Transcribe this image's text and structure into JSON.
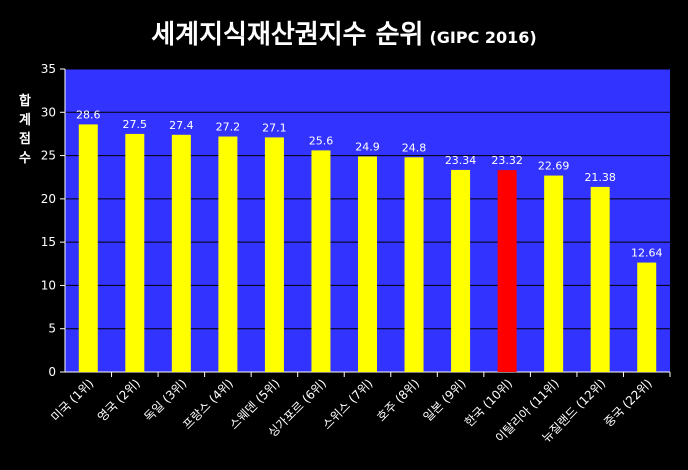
{
  "title": "세계지식재산권지수 순위",
  "subtitle": "(GIPC 2016)",
  "ylabel_chars": [
    "합",
    "계",
    "점",
    "수"
  ],
  "chart_data": {
    "type": "bar",
    "categories": [
      "미국 (1위)",
      "영국 (2위)",
      "독일 (3위)",
      "프랑스 (4위)",
      "스웨덴 (5위)",
      "싱가포르 (6위)",
      "스위스 (7위)",
      "호주 (8위)",
      "일본 (9위)",
      "한국 (10위)",
      "이탈리아 (11위)",
      "뉴질랜드 (12위)",
      "중국 (22위)"
    ],
    "values": [
      28.6,
      27.5,
      27.4,
      27.2,
      27.1,
      25.6,
      24.9,
      24.8,
      23.34,
      23.32,
      22.69,
      21.38,
      12.64
    ],
    "data_labels": [
      "28.6",
      "27.5",
      "27.4",
      "27.2",
      "27.1",
      "25.6",
      "24.9",
      "24.8",
      "23.34",
      "23.32",
      "22.69",
      "21.38",
      "12.64"
    ],
    "yticks": [
      "0",
      "5",
      "10",
      "15",
      "20",
      "25",
      "30",
      "35"
    ],
    "ylim": [
      0,
      35
    ],
    "grid": true,
    "colors": {
      "background": "#000000",
      "plot_area": "#3333ff",
      "bar": "#ffff00",
      "highlight_bar": "#ff0000",
      "text": "#ffffff",
      "grid": "#000000"
    },
    "highlight_index": 9
  }
}
